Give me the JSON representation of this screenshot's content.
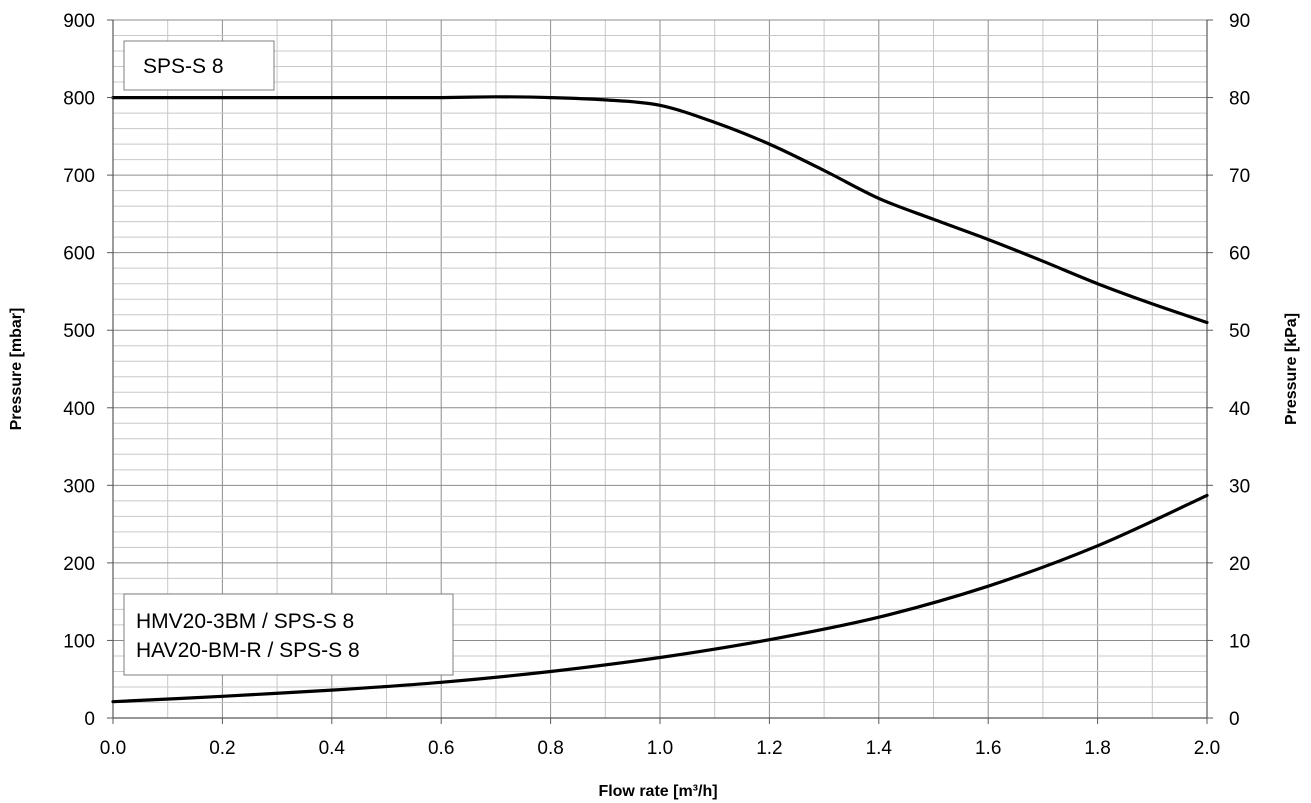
{
  "chart_data": {
    "type": "line",
    "xlabel": "Flow rate [m³/h]",
    "ylabel_left": "Pressure [mbar]",
    "ylabel_right": "Pressure [kPa]",
    "xlim": [
      0.0,
      2.0
    ],
    "ylim_left": [
      0,
      900
    ],
    "ylim_right": [
      0,
      90
    ],
    "x_ticks": [
      "0.0",
      "0.2",
      "0.4",
      "0.6",
      "0.8",
      "1.0",
      "1.2",
      "1.4",
      "1.6",
      "1.8",
      "2.0"
    ],
    "y_ticks_left": [
      "0",
      "100",
      "200",
      "300",
      "400",
      "500",
      "600",
      "700",
      "800",
      "900"
    ],
    "y_ticks_right": [
      "0",
      "10",
      "20",
      "30",
      "40",
      "50",
      "60",
      "70",
      "80",
      "90"
    ],
    "grid": true,
    "annotations": {
      "top_box": "SPS-S 8",
      "bottom_box_line1": "HMV20-3BM / SPS-S 8",
      "bottom_box_line2": "HAV20-BM-R / SPS-S 8"
    },
    "series": [
      {
        "x": [
          0.0,
          0.2,
          0.4,
          0.6,
          0.7,
          0.8,
          0.9,
          1.0,
          1.1,
          1.2,
          1.3,
          1.4,
          1.5,
          1.6,
          1.7,
          1.8,
          1.9,
          2.0
        ],
        "values": [
          800,
          800,
          800,
          800,
          801,
          800,
          797,
          790,
          768,
          740,
          706,
          670,
          643,
          617,
          589,
          560,
          534,
          510
        ]
      },
      {
        "x": [
          0.0,
          0.2,
          0.4,
          0.6,
          0.8,
          1.0,
          1.2,
          1.4,
          1.6,
          1.8,
          2.0
        ],
        "values": [
          21,
          28,
          36,
          46,
          60,
          78,
          101,
          130,
          170,
          222,
          287
        ]
      }
    ],
    "colors": {
      "curve": "#000000",
      "grid_major": "#8c8c8c",
      "grid_minor": "#c8c8c8"
    }
  }
}
